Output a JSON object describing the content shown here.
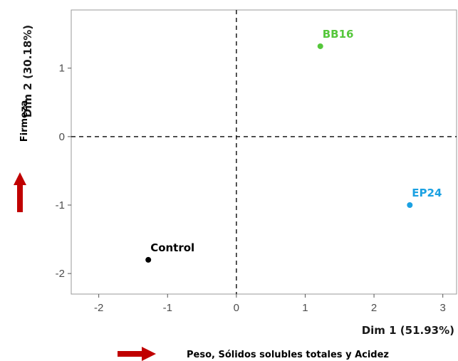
{
  "chart_data": {
    "type": "scatter",
    "xlabel": "Dim 1 (51.93%)",
    "ylabel": "Dim 2 (30.18%)",
    "xlim": [
      -2.4,
      3.2
    ],
    "ylim": [
      -2.3,
      1.85
    ],
    "x_ticks": [
      -2,
      -1,
      0,
      1,
      2,
      3
    ],
    "y_ticks": [
      -2,
      -1,
      0,
      1
    ],
    "reference_lines": {
      "x": 0,
      "y": 0,
      "style": "dashed"
    },
    "grid": false,
    "points": [
      {
        "name": "BB16",
        "x": 1.22,
        "y": 1.32,
        "color": "#55c73b"
      },
      {
        "name": "EP24",
        "x": 2.52,
        "y": -1.0,
        "color": "#1ba1e2"
      },
      {
        "name": "Control",
        "x": -1.28,
        "y": -1.8,
        "color": "#000000"
      }
    ]
  },
  "annotations": {
    "vertical_arrow_label": "Firmeza",
    "horizontal_arrow_label": "Peso, Sólidos solubles totales y Acidez",
    "arrow_color": "#c00000"
  }
}
